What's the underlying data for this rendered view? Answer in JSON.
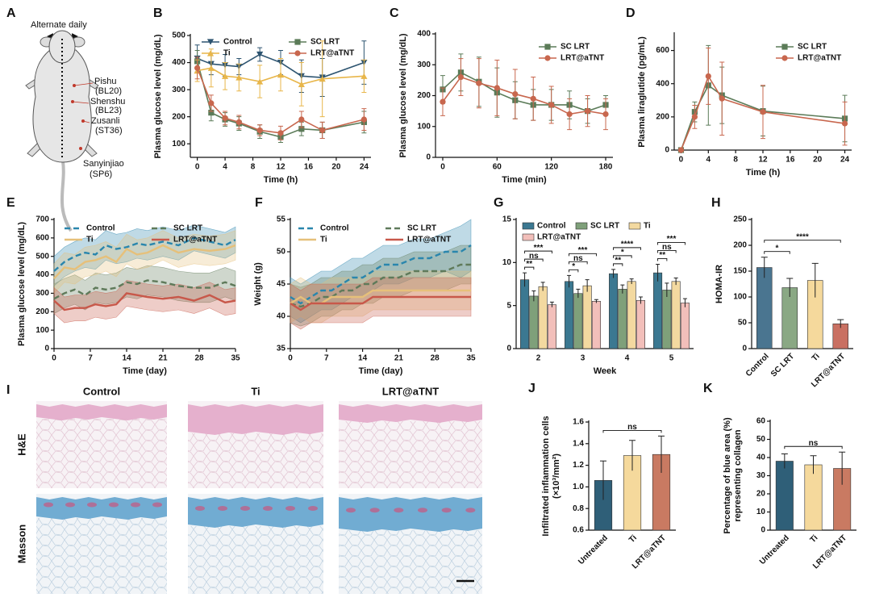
{
  "diagram": {
    "label": "A",
    "caption": "Alternate daily",
    "acupoints": [
      {
        "name": "Pishu",
        "code": "(BL20)"
      },
      {
        "name": "Shenshu",
        "code": "(BL23)"
      },
      {
        "name": "Zusanli",
        "code": "(ST36)"
      },
      {
        "name": "Sanyinjiao",
        "code": "(SP6)"
      }
    ]
  },
  "histology": {
    "label": "I",
    "columns": [
      "Control",
      "Ti",
      "LRT@aTNT"
    ],
    "rows": [
      "H&E",
      "Masson"
    ]
  },
  "chart_data": [
    {
      "type": "line",
      "label": "B",
      "xlabel": "Time (h)",
      "ylabel": "Plasma glucose level (mg/dL)",
      "x": [
        0,
        2,
        4,
        6,
        9,
        12,
        15,
        18,
        24
      ],
      "xlim": [
        -1,
        25
      ],
      "xticks": [
        0,
        4,
        8,
        12,
        16,
        20,
        24
      ],
      "ylim": [
        50,
        500
      ],
      "yticks": [
        100,
        200,
        300,
        400,
        500
      ],
      "series": [
        {
          "name": "Control",
          "color": "#2d5470",
          "marker": "triangle-down",
          "values": [
            415,
            395,
            390,
            385,
            430,
            400,
            350,
            345,
            400
          ],
          "errors": [
            50,
            40,
            40,
            30,
            25,
            45,
            60,
            70,
            80
          ]
        },
        {
          "name": "SC LRT",
          "color": "#5b7b58",
          "marker": "square",
          "values": [
            405,
            215,
            190,
            175,
            145,
            125,
            155,
            150,
            180
          ],
          "errors": [
            40,
            30,
            25,
            25,
            25,
            20,
            25,
            30,
            40
          ]
        },
        {
          "name": "Ti",
          "color": "#e8b64a",
          "marker": "triangle-up",
          "values": [
            370,
            380,
            350,
            345,
            330,
            355,
            320,
            340,
            350
          ],
          "errors": [
            40,
            70,
            50,
            50,
            60,
            60,
            80,
            140,
            60
          ]
        },
        {
          "name": "LRT@aTNT",
          "color": "#c8674e",
          "marker": "circle",
          "values": [
            380,
            250,
            195,
            180,
            150,
            140,
            190,
            150,
            190
          ],
          "errors": [
            40,
            30,
            25,
            25,
            20,
            25,
            30,
            30,
            40
          ]
        }
      ]
    },
    {
      "type": "line",
      "label": "C",
      "xlabel": "Time (min)",
      "ylabel": "Plasma glucose level (mg/dL)",
      "x": [
        0,
        20,
        40,
        60,
        80,
        100,
        120,
        140,
        160,
        180
      ],
      "xlim": [
        -8,
        188
      ],
      "xticks": [
        0,
        60,
        120,
        180
      ],
      "ylim": [
        0,
        400
      ],
      "yticks": [
        0,
        100,
        200,
        300,
        400
      ],
      "series": [
        {
          "name": "SC LRT",
          "color": "#5b7b58",
          "marker": "square",
          "values": [
            220,
            275,
            245,
            210,
            185,
            170,
            170,
            170,
            150,
            170
          ],
          "errors": [
            45,
            60,
            80,
            80,
            60,
            50,
            50,
            45,
            40,
            30
          ]
        },
        {
          "name": "LRT@aTNT",
          "color": "#c8674e",
          "marker": "circle",
          "values": [
            180,
            260,
            240,
            225,
            205,
            190,
            170,
            140,
            150,
            140
          ],
          "errors": [
            45,
            60,
            80,
            90,
            80,
            70,
            60,
            50,
            50,
            50
          ]
        }
      ]
    },
    {
      "type": "line",
      "label": "D",
      "xlabel": "Time (h)",
      "ylabel": "Plasma liraglutide (pg/mL)",
      "x": [
        0,
        2,
        4,
        6,
        12,
        24
      ],
      "xlim": [
        -1,
        25
      ],
      "xticks": [
        0,
        4,
        8,
        12,
        16,
        20,
        24
      ],
      "ylim": [
        0,
        700
      ],
      "yticks": [
        0,
        200,
        400,
        600
      ],
      "series": [
        {
          "name": "SC LRT",
          "color": "#5b7b58",
          "marker": "square",
          "values": [
            0,
            230,
            390,
            330,
            235,
            190
          ],
          "errors": [
            5,
            60,
            240,
            170,
            150,
            140
          ]
        },
        {
          "name": "LRT@aTNT",
          "color": "#c8674e",
          "marker": "circle",
          "values": [
            0,
            200,
            445,
            310,
            230,
            160
          ],
          "errors": [
            5,
            70,
            170,
            220,
            160,
            130
          ]
        }
      ]
    },
    {
      "type": "line",
      "label": "E",
      "band": true,
      "xlabel": "Time (day)",
      "ylabel": "Plasma glucose level (mg/dL)",
      "x": [
        0,
        2,
        4,
        6,
        8,
        10,
        12,
        14,
        16,
        18,
        21,
        24,
        27,
        30,
        33,
        35
      ],
      "xlim": [
        0,
        35
      ],
      "xticks": [
        0,
        7,
        14,
        21,
        28,
        35
      ],
      "ylim": [
        0,
        700
      ],
      "yticks": [
        0,
        100,
        200,
        300,
        400,
        500,
        600,
        700
      ],
      "series": [
        {
          "name": "Control",
          "color": "#2a86ad",
          "style": "dashed",
          "values": [
            420,
            470,
            500,
            520,
            510,
            560,
            540,
            550,
            570,
            560,
            580,
            560,
            600,
            580,
            560,
            590
          ],
          "errors": [
            80,
            80,
            80,
            80,
            80,
            80,
            80,
            80,
            80,
            80,
            80,
            80,
            70,
            70,
            70,
            70
          ]
        },
        {
          "name": "SC LRT",
          "color": "#5f7a5a",
          "style": "dashed",
          "values": [
            270,
            300,
            320,
            290,
            330,
            320,
            330,
            360,
            350,
            370,
            360,
            340,
            330,
            330,
            360,
            340
          ],
          "errors": [
            80,
            80,
            80,
            80,
            80,
            80,
            80,
            80,
            80,
            80,
            80,
            80,
            80,
            80,
            80,
            80
          ]
        },
        {
          "name": "Ti",
          "color": "#e6c07a",
          "style": "solid",
          "values": [
            380,
            440,
            430,
            470,
            480,
            500,
            470,
            540,
            510,
            520,
            560,
            520,
            540,
            530,
            540,
            560
          ],
          "errors": [
            80,
            80,
            80,
            80,
            80,
            80,
            80,
            80,
            80,
            80,
            80,
            80,
            80,
            80,
            80,
            80
          ]
        },
        {
          "name": "LRT@aTNT",
          "color": "#c8584a",
          "style": "solid",
          "values": [
            260,
            210,
            220,
            220,
            240,
            230,
            240,
            300,
            290,
            280,
            270,
            280,
            260,
            290,
            250,
            260
          ],
          "errors": [
            70,
            70,
            70,
            70,
            70,
            70,
            70,
            70,
            70,
            70,
            70,
            70,
            70,
            70,
            70,
            70
          ]
        }
      ]
    },
    {
      "type": "line",
      "label": "F",
      "band": true,
      "xlabel": "Time (day)",
      "ylabel": "Weight (g)",
      "x": [
        0,
        2,
        4,
        6,
        8,
        10,
        12,
        14,
        16,
        18,
        21,
        24,
        27,
        30,
        33,
        35
      ],
      "xlim": [
        0,
        35
      ],
      "xticks": [
        0,
        7,
        14,
        21,
        28,
        35
      ],
      "ylim": [
        35,
        55
      ],
      "yticks": [
        35,
        40,
        45,
        50,
        55
      ],
      "series": [
        {
          "name": "Control",
          "color": "#2a86ad",
          "style": "dashed",
          "values": [
            43,
            42,
            43,
            44,
            44,
            45,
            46,
            46,
            47,
            48,
            48,
            49,
            49,
            50,
            50,
            51
          ],
          "errors": [
            3,
            3,
            3,
            3,
            3,
            3,
            3,
            3,
            3,
            3,
            3,
            3,
            3,
            3,
            4,
            4
          ]
        },
        {
          "name": "SC LRT",
          "color": "#5f7a5a",
          "style": "dashed",
          "values": [
            42,
            41.5,
            42,
            43,
            43,
            44,
            44,
            45,
            45,
            46,
            46,
            47,
            47,
            47,
            48,
            48
          ],
          "errors": [
            3,
            3,
            3,
            3,
            3,
            3,
            3,
            3,
            3,
            3,
            3,
            3,
            3,
            3,
            3,
            3
          ]
        },
        {
          "name": "Ti",
          "color": "#e6c07a",
          "style": "solid",
          "values": [
            42,
            43,
            42,
            42,
            43,
            43,
            43,
            43,
            44,
            44,
            44,
            44,
            44,
            44,
            44,
            44
          ],
          "errors": [
            3,
            3,
            3,
            3,
            3,
            3,
            3,
            3,
            3,
            3,
            3,
            3,
            3,
            3,
            3,
            3
          ]
        },
        {
          "name": "LRT@aTNT",
          "color": "#c8584a",
          "style": "solid",
          "values": [
            42,
            41,
            42,
            42,
            42,
            42,
            42,
            42,
            43,
            43,
            43,
            43,
            43,
            43,
            43,
            43
          ],
          "errors": [
            3,
            3,
            3,
            3,
            3,
            3,
            3,
            3,
            3,
            3,
            3,
            3,
            3,
            3,
            3,
            3
          ]
        }
      ]
    },
    {
      "type": "bar",
      "label": "G",
      "xlabel": "Week",
      "categories": [
        "2",
        "3",
        "4",
        "5"
      ],
      "ylim": [
        0,
        15
      ],
      "yticks": [
        0,
        5,
        10,
        15
      ],
      "series": [
        {
          "name": "Control",
          "color": "#3b7891",
          "values": [
            8.0,
            7.8,
            8.7,
            8.8
          ],
          "errors": [
            0.8,
            0.7,
            0.5,
            1.0
          ]
        },
        {
          "name": "SC LRT",
          "color": "#7fa07a",
          "values": [
            6.1,
            6.4,
            6.9,
            6.8
          ],
          "errors": [
            0.6,
            0.5,
            0.5,
            0.8
          ]
        },
        {
          "name": "Ti",
          "color": "#f3d9a0",
          "values": [
            7.2,
            7.3,
            7.8,
            7.8
          ],
          "errors": [
            0.5,
            0.7,
            0.3,
            0.4
          ]
        },
        {
          "name": "LRT@aTNT",
          "color": "#f2bfba",
          "values": [
            5.1,
            5.5,
            5.6,
            5.3
          ],
          "errors": [
            0.3,
            0.2,
            0.4,
            0.5
          ]
        }
      ],
      "significance": [
        {
          "group": 0,
          "from": 0,
          "to": 1,
          "label": "**"
        },
        {
          "group": 0,
          "from": 0,
          "to": 2,
          "label": "ns"
        },
        {
          "group": 0,
          "from": 0,
          "to": 3,
          "label": "***"
        },
        {
          "group": 1,
          "from": 0,
          "to": 1,
          "label": "*"
        },
        {
          "group": 1,
          "from": 0,
          "to": 2,
          "label": "ns"
        },
        {
          "group": 1,
          "from": 0,
          "to": 3,
          "label": "***"
        },
        {
          "group": 2,
          "from": 0,
          "to": 1,
          "label": "**"
        },
        {
          "group": 2,
          "from": 0,
          "to": 2,
          "label": "*"
        },
        {
          "group": 2,
          "from": 0,
          "to": 3,
          "label": "****"
        },
        {
          "group": 3,
          "from": 0,
          "to": 1,
          "label": "**"
        },
        {
          "group": 3,
          "from": 0,
          "to": 2,
          "label": "ns"
        },
        {
          "group": 3,
          "from": 0,
          "to": 3,
          "label": "***"
        }
      ]
    },
    {
      "type": "bar",
      "label": "H",
      "ylabel": "HOMA-IR",
      "categories": [
        "Control",
        "SC LRT",
        "Ti",
        "LRT@aTNT"
      ],
      "values": [
        157,
        118,
        132,
        48
      ],
      "errors": [
        20,
        18,
        33,
        8
      ],
      "colors": [
        "#4a7590",
        "#8aa884",
        "#f5d99c",
        "#c97062"
      ],
      "ylim": [
        0,
        250
      ],
      "yticks": [
        0,
        50,
        100,
        150,
        200,
        250
      ],
      "significance": [
        {
          "from": 0,
          "to": 1,
          "label": "*"
        },
        {
          "from": 0,
          "to": 3,
          "label": "****"
        }
      ]
    },
    {
      "type": "bar",
      "label": "J",
      "ylabel": [
        "Infiltrated inflammation cells",
        "(×10³/mm²)"
      ],
      "categories": [
        "Untreated",
        "Ti",
        "LRT@aTNT"
      ],
      "values": [
        1.06,
        1.29,
        1.3
      ],
      "errors": [
        0.18,
        0.14,
        0.17
      ],
      "colors": [
        "#2f5f78",
        "#f5d99c",
        "#c97a62"
      ],
      "ylim": [
        0.6,
        1.6
      ],
      "yticks": [
        0.6,
        0.8,
        {
          "value": 1,
          "label": "1.0"
        },
        1.2,
        1.4,
        1.6
      ],
      "significance": [
        {
          "from": 0,
          "to": 2,
          "label": "ns"
        }
      ]
    },
    {
      "type": "bar",
      "label": "K",
      "ylabel": [
        "Percentage of blue area (%)",
        "representing collagen"
      ],
      "categories": [
        "Untreated",
        "Ti",
        "LRT@aTNT"
      ],
      "values": [
        38,
        36,
        34
      ],
      "errors": [
        4,
        5,
        9
      ],
      "colors": [
        "#2f5f78",
        "#f5d99c",
        "#c97a62"
      ],
      "ylim": [
        0,
        60
      ],
      "yticks": [
        0,
        10,
        20,
        30,
        40,
        50,
        60
      ],
      "significance": [
        {
          "from": 0,
          "to": 2,
          "label": "ns"
        }
      ]
    }
  ]
}
